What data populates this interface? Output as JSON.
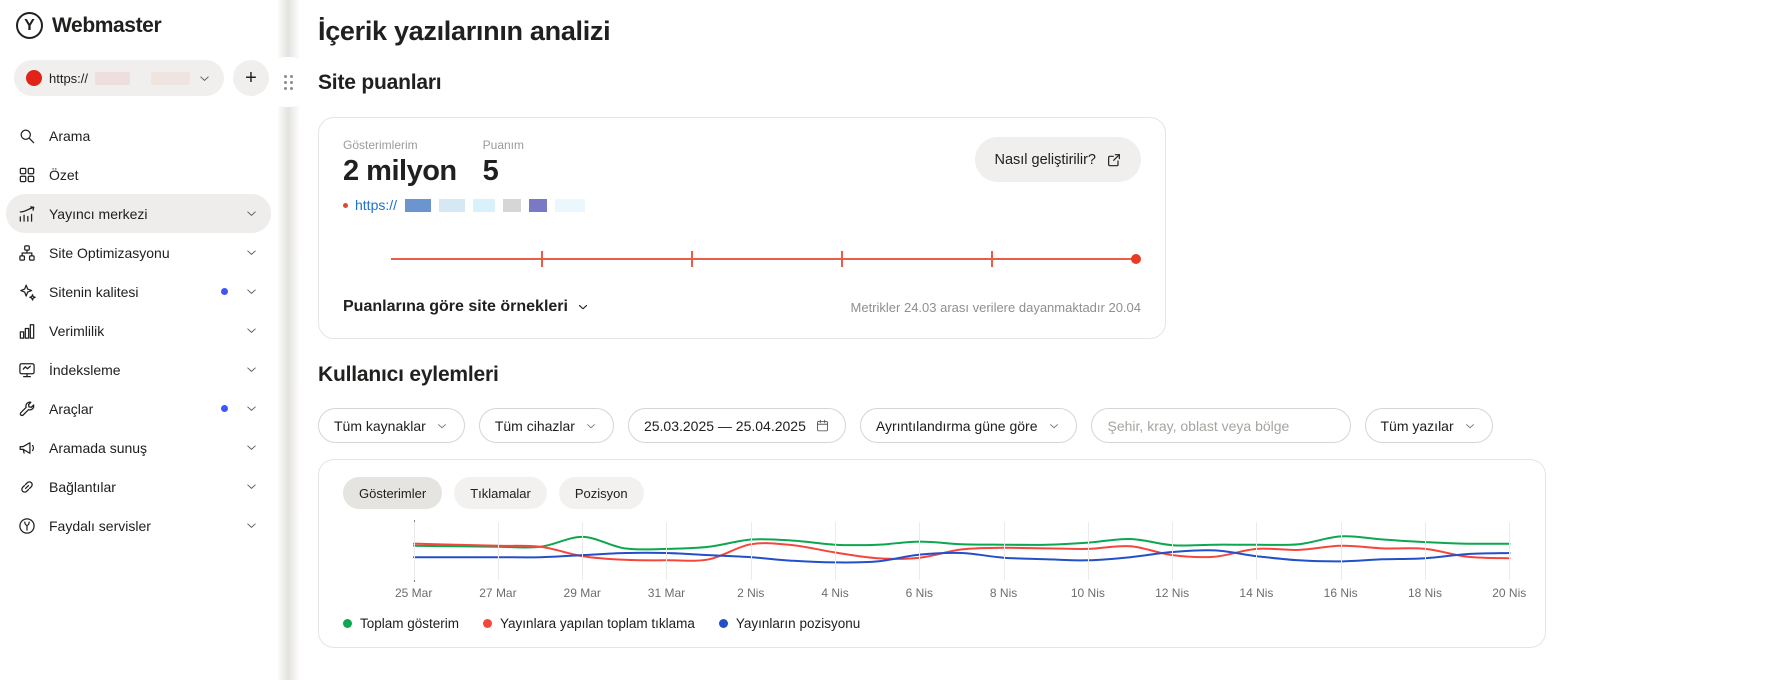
{
  "brand": {
    "logo_letter": "Y",
    "name": "Webmaster"
  },
  "site_selector": {
    "url_prefix": "https://",
    "add_button_label": "+"
  },
  "sidebar": {
    "items": [
      {
        "id": "arama",
        "label": "Arama",
        "icon": "search-icon",
        "chevron": false,
        "badge": false,
        "active": false
      },
      {
        "id": "ozet",
        "label": "Özet",
        "icon": "grid-icon",
        "chevron": false,
        "badge": false,
        "active": false
      },
      {
        "id": "yayinci-merkezi",
        "label": "Yayıncı merkezi",
        "icon": "chart-growth-icon",
        "chevron": true,
        "badge": false,
        "active": true
      },
      {
        "id": "site-optimizasyonu",
        "label": "Site Optimizasyonu",
        "icon": "sitemap-icon",
        "chevron": true,
        "badge": false,
        "active": false
      },
      {
        "id": "sitenin-kalitesi",
        "label": "Sitenin kalitesi",
        "icon": "sparkle-star-icon",
        "chevron": true,
        "badge": true,
        "active": false
      },
      {
        "id": "verimlilik",
        "label": "Verimlilik",
        "icon": "bar-chart-icon",
        "chevron": true,
        "badge": false,
        "active": false
      },
      {
        "id": "indeksleme",
        "label": "İndeksleme",
        "icon": "monitor-icon",
        "chevron": true,
        "badge": false,
        "active": false
      },
      {
        "id": "araclar",
        "label": "Araçlar",
        "icon": "wrench-icon",
        "chevron": true,
        "badge": true,
        "active": false
      },
      {
        "id": "aramada-sunus",
        "label": "Aramada sunuş",
        "icon": "megaphone-icon",
        "chevron": true,
        "badge": false,
        "active": false
      },
      {
        "id": "baglantilar",
        "label": "Bağlantılar",
        "icon": "link-icon",
        "chevron": true,
        "badge": false,
        "active": false
      },
      {
        "id": "faydali-servisler",
        "label": "Faydalı servisler",
        "icon": "yandex-circle-icon",
        "chevron": true,
        "badge": false,
        "active": false
      }
    ]
  },
  "page": {
    "title": "İçerik yazılarının analizi"
  },
  "score": {
    "heading": "Site puanları",
    "impressions": {
      "label": "Gösterimlerim",
      "value": "2 milyon"
    },
    "points": {
      "label": "Puanım",
      "value": "5"
    },
    "improve_button_label": "Nasıl geliştirilir?",
    "site_link_prefix": "https://",
    "examples_toggle_label": "Puanlarına göre site örnekleri",
    "metrics_note": "Metrikler 24.03 arası verilere dayanmaktadır 20.04",
    "scale": {
      "tick_positions_pct": [
        20,
        40,
        60,
        80
      ],
      "marker_at_pct": 100,
      "line_color": "#ea5d48",
      "dot_color": "#e83a26"
    }
  },
  "user_actions": {
    "heading": "Kullanıcı eylemleri",
    "filters": {
      "sources_label": "Tüm kaynaklar",
      "devices_label": "Tüm cihazlar",
      "date_range": "25.03.2025 — 25.04.2025",
      "granularity_label": "Ayrıntılandırma güne göre",
      "region_placeholder": "Şehir, kray, oblast veya bölge",
      "posts_label": "Tüm yazılar"
    },
    "tabs": [
      {
        "label": "Gösterimler",
        "active": true
      },
      {
        "label": "Tıklamalar",
        "active": false
      },
      {
        "label": "Pozisyon",
        "active": false
      }
    ],
    "x_tick_labels": [
      "25 Mar",
      "27 Mar",
      "29 Mar",
      "31 Mar",
      "2 Nis",
      "4 Nis",
      "6 Nis",
      "8 Nis",
      "10 Nis",
      "12 Nis",
      "14 Nis",
      "16 Nis",
      "18 Nis",
      "20 Nis"
    ],
    "legend": [
      {
        "label": "Toplam gösterim",
        "color": "#0ca750"
      },
      {
        "label": "Yayınlara yapılan toplam tıklama",
        "color": "#f5463d"
      },
      {
        "label": "Yayınların pozisyonu",
        "color": "#2350c8"
      }
    ]
  },
  "chart_data": {
    "type": "line",
    "title": "Kullanıcı eylemleri",
    "x": [
      "25 Mar",
      "26 Mar",
      "27 Mar",
      "28 Mar",
      "29 Mar",
      "30 Mar",
      "31 Mar",
      "1 Nis",
      "2 Nis",
      "3 Nis",
      "4 Nis",
      "5 Nis",
      "6 Nis",
      "7 Nis",
      "8 Nis",
      "9 Nis",
      "10 Nis",
      "11 Nis",
      "12 Nis",
      "13 Nis",
      "14 Nis",
      "15 Nis",
      "16 Nis",
      "17 Nis",
      "18 Nis",
      "19 Nis",
      "20 Nis"
    ],
    "series": [
      {
        "name": "Toplam gösterim",
        "color": "#0ca750",
        "values": [
          6.2,
          6.1,
          6.0,
          6.0,
          7.9,
          5.7,
          5.6,
          6.0,
          7.4,
          7.2,
          6.4,
          6.4,
          7.0,
          6.5,
          6.4,
          6.4,
          6.8,
          7.5,
          6.3,
          6.4,
          6.4,
          6.5,
          8.0,
          7.4,
          6.9,
          6.6,
          6.6
        ]
      },
      {
        "name": "Yayınlara yapılan toplam tıklama",
        "color": "#f5463d",
        "values": [
          6.6,
          6.4,
          6.2,
          6.0,
          4.2,
          3.5,
          3.4,
          3.6,
          6.5,
          6.3,
          4.9,
          3.8,
          3.9,
          5.5,
          5.8,
          5.7,
          5.6,
          6.1,
          4.4,
          4.1,
          5.6,
          5.4,
          6.2,
          5.7,
          5.6,
          4.1,
          3.8
        ]
      },
      {
        "name": "Yayınların pozisyonu",
        "color": "#2350c8",
        "values": [
          4.0,
          4.0,
          4.0,
          4.0,
          4.4,
          4.8,
          4.8,
          4.4,
          4.0,
          3.3,
          3.0,
          3.2,
          4.5,
          4.8,
          3.9,
          3.6,
          3.4,
          4.0,
          5.0,
          5.3,
          4.2,
          3.4,
          3.2,
          3.6,
          3.8,
          4.6,
          4.8
        ]
      }
    ],
    "xlabel": "",
    "ylabel": "",
    "y_range_relative": [
      0,
      10
    ],
    "grid": "vertical-only",
    "legend_position": "bottom",
    "note": "No y-axis tick labels are shown in the UI; values are relative magnitudes read from line positions."
  }
}
